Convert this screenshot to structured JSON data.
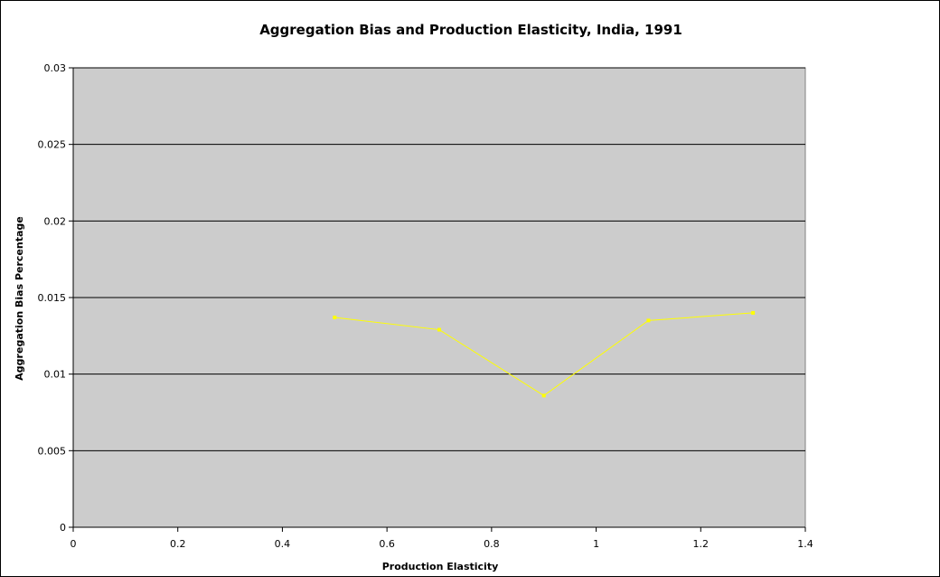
{
  "chart_data": {
    "type": "line",
    "title": "Aggregation Bias and Production Elasticity, India, 1991",
    "xlabel": "Production Elasticity",
    "ylabel": "Aggregation Bias Percentage",
    "xlim": [
      0,
      1.4
    ],
    "ylim": [
      0,
      0.03
    ],
    "x_ticks": [
      0,
      0.2,
      0.4,
      0.6,
      0.8,
      1,
      1.2,
      1.4
    ],
    "x_tick_labels": [
      "0",
      "0.2",
      "0.4",
      "0.6",
      "0.8",
      "1",
      "1.2",
      "1.4"
    ],
    "y_ticks": [
      0,
      0.005,
      0.01,
      0.015,
      0.02,
      0.025,
      0.03
    ],
    "y_tick_labels": [
      "0",
      "0.005",
      "0.01",
      "0.015",
      "0.02",
      "0.025",
      "0.03"
    ],
    "grid": "horizontal",
    "legend": "none",
    "plot_background": "#cccccc",
    "series": [
      {
        "color": "#ffff00",
        "x": [
          0.5,
          0.7,
          0.9,
          1.1,
          1.3
        ],
        "y": [
          0.0137,
          0.0129,
          0.0086,
          0.0135,
          0.014
        ]
      }
    ]
  }
}
